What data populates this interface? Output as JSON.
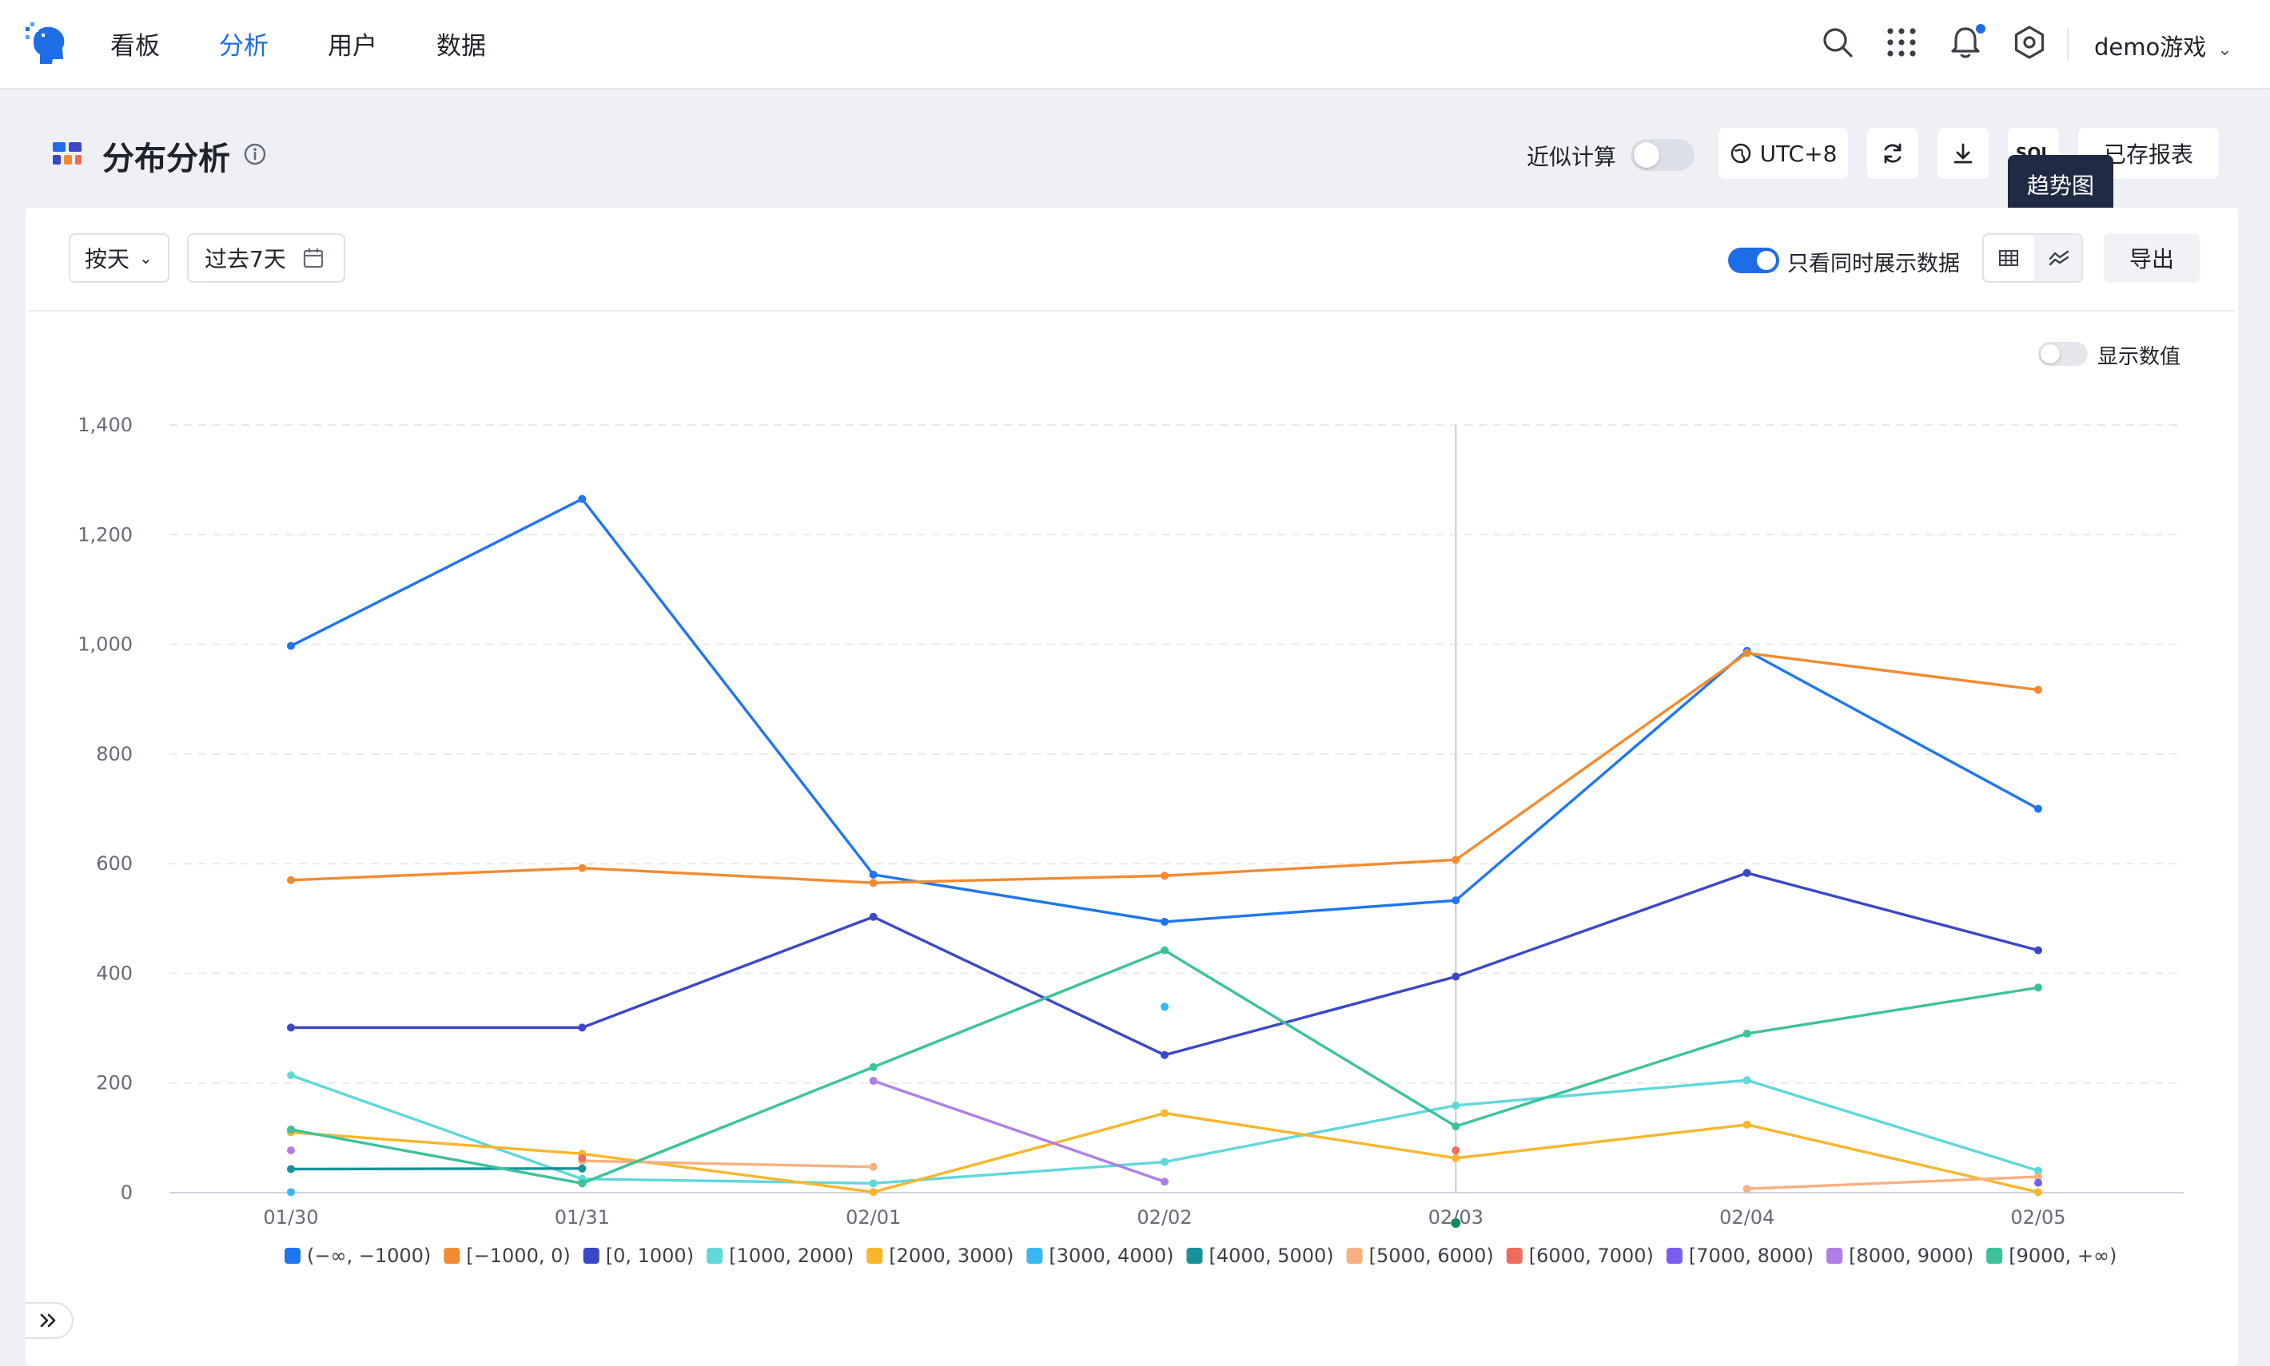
{
  "nav": {
    "items": [
      {
        "label": "看板",
        "active": false
      },
      {
        "label": "分析",
        "active": true
      },
      {
        "label": "用户",
        "active": false
      },
      {
        "label": "数据",
        "active": false
      }
    ],
    "account": "demo游戏",
    "accent_color": "#1e6ce6"
  },
  "header": {
    "title": "分布分析",
    "approx_label": "近似计算",
    "approx_enabled": false,
    "timezone": "UTC+8",
    "sql_label": "SQL",
    "saved_reports_label": "已存报表",
    "tooltip": "趋势图"
  },
  "toolbar": {
    "granularity": "按天",
    "date_range": "过去7天",
    "only_concurrent_label": "只看同时展示数据",
    "only_concurrent_enabled": true,
    "export_label": "导出",
    "show_values_label": "显示数值",
    "show_values_enabled": false
  },
  "chart_data": {
    "type": "line",
    "x": [
      "01/30",
      "01/31",
      "02/01",
      "02/02",
      "02/03",
      "02/04",
      "02/05"
    ],
    "y_ticks": [
      "0",
      "200",
      "400",
      "600",
      "800",
      "1,000",
      "1,200",
      "1,400"
    ],
    "ylim": [
      0,
      1400
    ],
    "grid": true,
    "legend": "bottom",
    "hover_x": "02/03",
    "series": [
      {
        "name": "(−∞, −1000)",
        "color": "#1e76f0",
        "values": [
          997,
          1265,
          580,
          494,
          533,
          988,
          700
        ]
      },
      {
        "name": "[−1000, 0)",
        "color": "#f28b30",
        "values": [
          570,
          592,
          565,
          578,
          607,
          984,
          917
        ]
      },
      {
        "name": "[0, 1000)",
        "color": "#3b47c9",
        "values": [
          301,
          301,
          503,
          251,
          394,
          583,
          442
        ]
      },
      {
        "name": "[1000, 2000)",
        "color": "#5fd8db",
        "values": [
          214,
          25,
          17,
          56,
          159,
          205,
          40
        ]
      },
      {
        "name": "[2000, 3000)",
        "color": "#f8b62a",
        "values": [
          110,
          71,
          1,
          145,
          63,
          124,
          1
        ]
      },
      {
        "name": "[3000, 4000)",
        "color": "#38b8f2",
        "values": [
          1,
          null,
          null,
          339,
          null,
          null,
          null
        ]
      },
      {
        "name": "[4000, 5000)",
        "color": "#15929c",
        "values": [
          43,
          44,
          null,
          null,
          null,
          null,
          null
        ]
      },
      {
        "name": "[5000, 6000)",
        "color": "#f7b081",
        "values": [
          null,
          58,
          47,
          null,
          null,
          7,
          29
        ]
      },
      {
        "name": "[6000, 7000)",
        "color": "#ef6b5b",
        "values": [
          null,
          63,
          null,
          null,
          77,
          null,
          null
        ]
      },
      {
        "name": "[7000, 8000)",
        "color": "#7a5ef0",
        "values": [
          null,
          null,
          null,
          null,
          null,
          null,
          18
        ]
      },
      {
        "name": "[8000, 9000)",
        "color": "#b07ee8",
        "values": [
          77,
          null,
          204,
          20,
          null,
          null,
          null
        ]
      },
      {
        "name": "[9000, +∞)",
        "color": "#3cc29a",
        "values": [
          115,
          17,
          229,
          442,
          121,
          290,
          374
        ]
      }
    ]
  }
}
